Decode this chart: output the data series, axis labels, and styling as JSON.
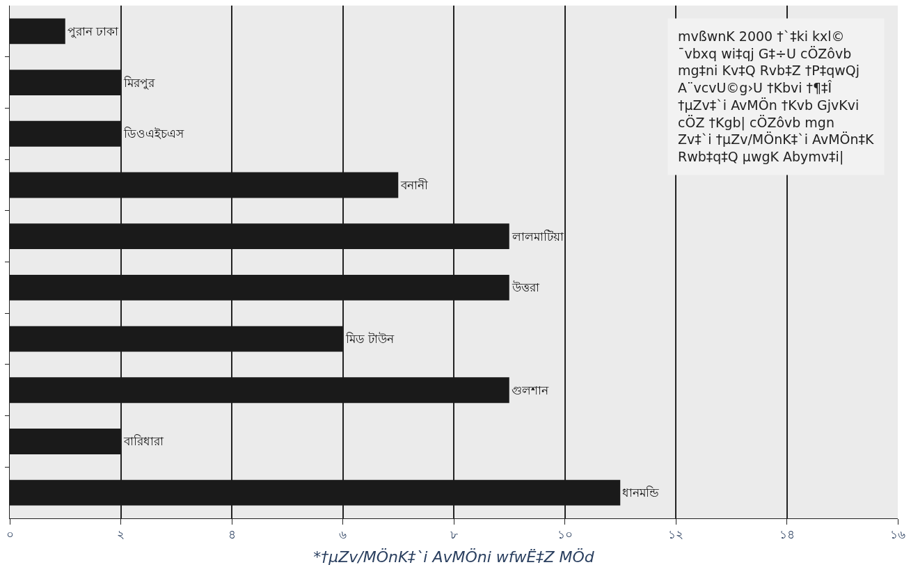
{
  "chart_data": {
    "type": "bar",
    "orientation": "horizontal",
    "categories": [
      "পুরান ঢাকা",
      "মিরপুর",
      "ডিওএইচএস",
      "বনানী",
      "লালমাটিয়া",
      "উত্তরা",
      "মিড টাউন",
      "গুলশান",
      "বারিধারা",
      "ধানমন্ডি"
    ],
    "values": [
      1,
      2,
      2,
      7,
      9,
      9,
      6,
      9,
      2,
      11
    ],
    "color": "#1a1a1a",
    "xlim": [
      0,
      16
    ],
    "xticks": [
      {
        "value": 0,
        "label": "০"
      },
      {
        "value": 2,
        "label": "২"
      },
      {
        "value": 4,
        "label": "৪"
      },
      {
        "value": 6,
        "label": "৬"
      },
      {
        "value": 8,
        "label": "৮"
      },
      {
        "value": 10,
        "label": "১০"
      },
      {
        "value": 12,
        "label": "১২"
      },
      {
        "value": 14,
        "label": "১৪"
      },
      {
        "value": 16,
        "label": "১৬"
      }
    ],
    "xlabel": "*†µZv/MÖnK‡`i AvMÖni wfwË‡Z MÖd",
    "annotations": [
      "mvßwnK 2000 †`‡ki kxl©\n¯vbxq wi‡qj G‡÷U cÖZôvb\nmg‡ni Kv‡Q Rvb‡Z †P‡qwQj\nA¨vcvU©g›U †Kbvi †¶‡Î\n†µZv‡`i AvMÖn †Kvb GjvKvi\ncÖZ †Kgb| cÖZôvb mgn\nZv‡`i †µZv/MÖnK‡`i AvMÖn‡K\nRwb‡q‡Q µwgK Abymv‡i|"
    ],
    "grid": "x",
    "tick_labels": "x",
    "legend": false
  }
}
